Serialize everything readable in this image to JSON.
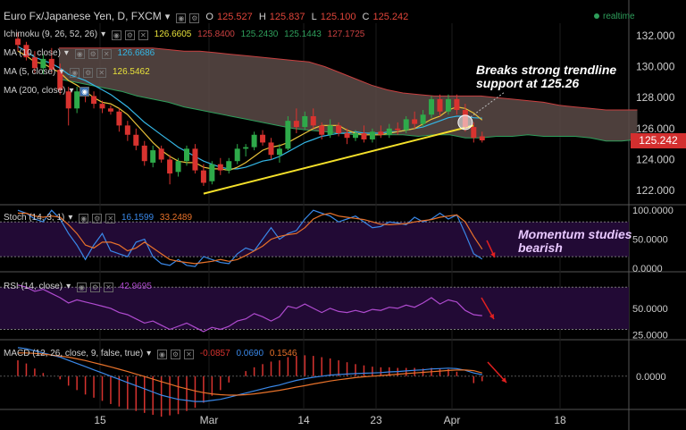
{
  "header": {
    "symbol": "Euro Fx/Japanese Yen, D, FXCM",
    "o_label": "O",
    "o": "125.527",
    "h_label": "H",
    "h": "125.837",
    "l_label": "L",
    "l": "125.100",
    "c_label": "C",
    "c": "125.242",
    "realtime": "realtime"
  },
  "indicators": {
    "ichimoku": {
      "label": "Ichimoku (9, 26, 52, 26)",
      "v1": "126.6605",
      "v2": "125.8400",
      "v3": "125.2430",
      "v4": "125.1443",
      "v5": "127.1725"
    },
    "ma10": {
      "label": "MA (10, close)",
      "value": "126.6686"
    },
    "ma5": {
      "label": "MA (5, close)",
      "value": "126.5462"
    },
    "ma200": {
      "label": "MA (200, close)"
    },
    "stoch": {
      "label": "Stoch (14, 3, 1)",
      "k": "16.1599",
      "d": "33.2489"
    },
    "rsi": {
      "label": "RSI (14, close)",
      "value": "42.9695"
    },
    "macd": {
      "label": "MACD (12, 26, close, 9, false, true)",
      "hist": "-0.0857",
      "macd": "0.0690",
      "signal": "0.1546"
    }
  },
  "annotations": {
    "trend_line1": "Breaks strong trendline",
    "trend_line2": "support at 125.26",
    "momentum_line1": "Momentum studies",
    "momentum_line2": "bearish"
  },
  "price_tag": "125.242",
  "colors": {
    "bull": "#2eaa4a",
    "bear": "#d8332f",
    "ma10": "#34b7e6",
    "ma5": "#e8c23a",
    "trendline": "#f5e12a",
    "stoch_k": "#3a88e8",
    "stoch_d": "#e8722a",
    "rsi": "#b04bd0",
    "macd": "#3a88e8",
    "signal": "#e8722a",
    "hist": "#d8332f",
    "cloud": "#5a4a47",
    "osc_bg": "#220a35"
  },
  "chart_data": {
    "type": "candlestick",
    "symbol": "Euro Fx/Japanese Yen",
    "timeframe": "D",
    "x_ticks": [
      "15",
      "Mar",
      "14",
      "23",
      "Apr",
      "18"
    ],
    "price_axis": {
      "ticks": [
        122.0,
        124.0,
        126.0,
        128.0,
        130.0,
        132.0
      ],
      "range": [
        121.2,
        132.8
      ]
    },
    "stoch_axis": {
      "ticks": [
        "0.0000",
        "50.0000",
        "100.0000"
      ]
    },
    "rsi_axis": {
      "ticks": [
        "25.0000",
        "50.0000"
      ]
    },
    "macd_axis": {
      "ticks": [
        "0.0000"
      ]
    },
    "candles": [
      [
        131.8,
        132.2,
        131.0,
        131.4
      ],
      [
        131.4,
        131.6,
        130.4,
        130.6
      ],
      [
        130.6,
        131.0,
        129.6,
        129.9
      ],
      [
        129.9,
        130.8,
        129.5,
        130.5
      ],
      [
        130.5,
        131.2,
        129.6,
        129.8
      ],
      [
        129.8,
        130.2,
        128.2,
        128.5
      ],
      [
        128.4,
        128.7,
        126.2,
        127.3
      ],
      [
        127.3,
        128.7,
        127.0,
        128.4
      ],
      [
        128.3,
        128.6,
        127.7,
        128.1
      ],
      [
        128.1,
        128.4,
        127.3,
        127.6
      ],
      [
        127.6,
        127.8,
        127.0,
        127.3
      ],
      [
        127.3,
        127.5,
        126.9,
        127.1
      ],
      [
        127.1,
        127.3,
        125.8,
        126.2
      ],
      [
        126.2,
        126.5,
        125.2,
        125.6
      ],
      [
        125.6,
        126.0,
        124.6,
        124.9
      ],
      [
        124.9,
        125.2,
        123.6,
        123.9
      ],
      [
        123.8,
        124.9,
        123.5,
        124.6
      ],
      [
        124.7,
        124.9,
        123.8,
        124.0
      ],
      [
        124.0,
        124.3,
        122.4,
        123.1
      ],
      [
        123.2,
        124.1,
        122.9,
        123.9
      ],
      [
        123.9,
        124.9,
        123.6,
        124.7
      ],
      [
        124.7,
        125.0,
        123.1,
        123.3
      ],
      [
        123.3,
        123.7,
        122.3,
        122.5
      ],
      [
        122.6,
        123.9,
        122.4,
        123.7
      ],
      [
        123.7,
        124.1,
        123.0,
        123.3
      ],
      [
        123.3,
        124.1,
        123.1,
        123.9
      ],
      [
        123.9,
        125.0,
        123.7,
        124.7
      ],
      [
        124.7,
        125.0,
        124.2,
        124.8
      ],
      [
        124.8,
        125.8,
        124.6,
        125.6
      ],
      [
        125.6,
        125.9,
        124.9,
        125.1
      ],
      [
        125.1,
        125.4,
        124.0,
        124.3
      ],
      [
        124.3,
        125.0,
        123.8,
        124.7
      ],
      [
        124.7,
        126.8,
        124.6,
        126.5
      ],
      [
        126.5,
        127.3,
        125.7,
        126.1
      ],
      [
        126.1,
        127.1,
        125.9,
        126.8
      ],
      [
        126.8,
        127.3,
        126.0,
        126.2
      ],
      [
        126.2,
        126.4,
        125.3,
        125.6
      ],
      [
        125.6,
        126.6,
        125.4,
        126.2
      ],
      [
        126.2,
        126.4,
        125.5,
        125.7
      ],
      [
        125.7,
        126.0,
        125.0,
        125.4
      ],
      [
        125.4,
        125.9,
        125.2,
        125.7
      ],
      [
        125.7,
        126.2,
        125.1,
        125.3
      ],
      [
        125.3,
        126.0,
        125.1,
        125.8
      ],
      [
        125.8,
        126.2,
        125.4,
        125.6
      ],
      [
        125.6,
        126.3,
        125.4,
        126.0
      ],
      [
        126.0,
        126.4,
        125.6,
        125.9
      ],
      [
        125.9,
        126.8,
        125.7,
        126.6
      ],
      [
        126.6,
        127.1,
        126.0,
        126.3
      ],
      [
        126.3,
        127.2,
        126.1,
        126.9
      ],
      [
        126.9,
        128.1,
        126.7,
        127.9
      ],
      [
        127.9,
        128.2,
        126.8,
        127.1
      ],
      [
        127.1,
        128.2,
        126.9,
        127.9
      ],
      [
        127.9,
        128.2,
        126.9,
        127.2
      ],
      [
        127.2,
        127.6,
        125.8,
        126.1
      ],
      [
        126.1,
        126.4,
        125.1,
        125.4
      ],
      [
        125.5,
        125.8,
        125.1,
        125.24
      ]
    ],
    "ma10": [
      131.3,
      131.0,
      130.6,
      130.4,
      130.2,
      129.9,
      129.5,
      129.3,
      129.1,
      128.8,
      128.5,
      128.2,
      127.8,
      127.4,
      126.9,
      126.4,
      126.0,
      125.6,
      125.2,
      124.8,
      124.5,
      124.2,
      123.9,
      123.7,
      123.5,
      123.4,
      123.4,
      123.5,
      123.7,
      123.9,
      124.0,
      124.2,
      124.5,
      124.8,
      125.1,
      125.3,
      125.5,
      125.6,
      125.7,
      125.7,
      125.8,
      125.7,
      125.7,
      125.7,
      125.8,
      125.8,
      125.9,
      126.0,
      126.1,
      126.3,
      126.5,
      126.7,
      126.8,
      126.8,
      126.7,
      126.67
    ],
    "ma5": [
      131.0,
      130.7,
      130.3,
      130.2,
      129.9,
      129.6,
      129.1,
      128.8,
      128.4,
      128.0,
      127.7,
      127.6,
      127.3,
      126.9,
      126.3,
      125.7,
      125.1,
      124.6,
      124.2,
      123.9,
      123.8,
      123.8,
      123.5,
      123.4,
      123.4,
      123.3,
      123.5,
      123.8,
      124.2,
      124.6,
      124.8,
      124.9,
      125.1,
      125.4,
      125.7,
      126.0,
      126.2,
      126.2,
      126.2,
      125.9,
      125.7,
      125.6,
      125.6,
      125.6,
      125.7,
      125.8,
      125.9,
      126.0,
      126.3,
      126.6,
      126.8,
      127.2,
      127.4,
      127.3,
      127.0,
      126.55
    ],
    "cloud_upper": [
      131.2,
      131.2,
      131.2,
      131.2,
      131.2,
      131.2,
      131.2,
      131.1,
      131.0,
      131.0,
      130.9,
      130.8,
      130.7,
      130.6,
      130.5,
      130.4,
      130.3,
      130.0,
      129.6,
      129.2,
      128.8,
      128.5,
      128.3,
      128.2,
      128.1,
      128.1,
      128.1,
      128.1,
      128.0,
      127.9,
      127.8,
      127.7,
      127.5,
      127.4,
      127.3,
      127.2,
      127.2,
      127.2
    ],
    "cloud_lower": [
      129.2,
      129.0,
      128.8,
      128.6,
      128.4,
      128.1,
      127.9,
      127.7,
      127.4,
      127.2,
      127.0,
      126.8,
      126.6,
      126.4,
      126.2,
      126.0,
      125.9,
      125.8,
      125.7,
      125.6,
      125.6,
      125.6,
      125.6,
      125.5,
      125.6,
      125.6,
      125.4,
      125.4,
      125.5,
      125.5,
      125.6,
      125.5,
      125.5,
      125.5,
      125.4,
      125.2,
      125.2,
      125.3
    ],
    "cloud_start_index": 5,
    "trendline": [
      [
        22,
        121.8
      ],
      [
        54,
        126.2
      ]
    ],
    "stoch_k": [
      100,
      95,
      85,
      80,
      100,
      85,
      60,
      40,
      15,
      40,
      60,
      30,
      25,
      20,
      45,
      50,
      20,
      8,
      5,
      15,
      5,
      3,
      20,
      15,
      10,
      8,
      25,
      35,
      30,
      50,
      70,
      50,
      60,
      65,
      85,
      100,
      95,
      90,
      80,
      85,
      90,
      80,
      70,
      72,
      80,
      78,
      75,
      88,
      80,
      85,
      95,
      85,
      92,
      60,
      25,
      16
    ],
    "stoch_d": [
      95,
      95,
      90,
      88,
      90,
      88,
      75,
      60,
      40,
      35,
      45,
      45,
      40,
      30,
      35,
      45,
      35,
      25,
      15,
      12,
      10,
      8,
      10,
      12,
      15,
      12,
      15,
      22,
      30,
      38,
      50,
      55,
      58,
      60,
      70,
      85,
      92,
      95,
      90,
      88,
      86,
      84,
      80,
      76,
      75,
      76,
      77,
      80,
      82,
      84,
      88,
      90,
      92,
      80,
      55,
      33
    ],
    "rsi": [
      72,
      70,
      66,
      68,
      64,
      60,
      55,
      58,
      56,
      54,
      52,
      50,
      46,
      44,
      40,
      36,
      38,
      34,
      30,
      33,
      36,
      32,
      28,
      32,
      30,
      33,
      38,
      40,
      45,
      42,
      38,
      42,
      52,
      50,
      54,
      50,
      46,
      50,
      47,
      46,
      48,
      46,
      49,
      48,
      51,
      50,
      53,
      51,
      55,
      60,
      54,
      58,
      56,
      48,
      44,
      43
    ],
    "macd": [
      1.35,
      1.3,
      1.2,
      1.1,
      1.0,
      0.9,
      0.75,
      0.6,
      0.45,
      0.3,
      0.15,
      0.0,
      -0.15,
      -0.3,
      -0.45,
      -0.6,
      -0.75,
      -0.9,
      -1.0,
      -1.1,
      -1.15,
      -1.2,
      -1.2,
      -1.15,
      -1.1,
      -1.0,
      -0.9,
      -0.8,
      -0.7,
      -0.6,
      -0.5,
      -0.42,
      -0.3,
      -0.2,
      -0.12,
      -0.05,
      0.0,
      0.05,
      0.08,
      0.1,
      0.12,
      0.14,
      0.15,
      0.17,
      0.2,
      0.22,
      0.25,
      0.28,
      0.3,
      0.34,
      0.36,
      0.38,
      0.36,
      0.28,
      0.15,
      0.07
    ],
    "signal": [
      1.1,
      1.1,
      1.08,
      1.05,
      1.0,
      0.95,
      0.9,
      0.82,
      0.74,
      0.64,
      0.54,
      0.44,
      0.33,
      0.22,
      0.1,
      -0.02,
      -0.14,
      -0.26,
      -0.38,
      -0.5,
      -0.6,
      -0.7,
      -0.78,
      -0.84,
      -0.88,
      -0.9,
      -0.9,
      -0.88,
      -0.84,
      -0.79,
      -0.73,
      -0.67,
      -0.6,
      -0.52,
      -0.45,
      -0.37,
      -0.3,
      -0.23,
      -0.17,
      -0.12,
      -0.07,
      -0.03,
      0.0,
      0.03,
      0.06,
      0.09,
      0.12,
      0.15,
      0.18,
      0.21,
      0.24,
      0.27,
      0.29,
      0.29,
      0.26,
      0.15
    ],
    "hist_start_index": 0
  }
}
